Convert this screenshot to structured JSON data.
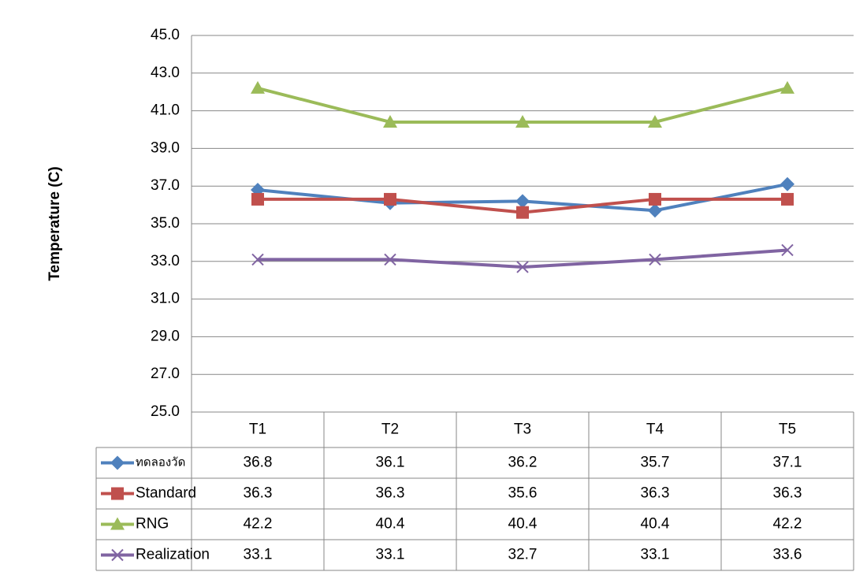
{
  "chart_data": {
    "type": "line",
    "y_label": "Temperature (C)",
    "categories": [
      "T1",
      "T2",
      "T3",
      "T4",
      "T5"
    ],
    "ylim": [
      25,
      45
    ],
    "yticks": [
      {
        "value": 25,
        "label": "25.0"
      },
      {
        "value": 27,
        "label": "27.0"
      },
      {
        "value": 29,
        "label": "29.0"
      },
      {
        "value": 31,
        "label": "31.0"
      },
      {
        "value": 33,
        "label": "33.0"
      },
      {
        "value": 35,
        "label": "35.0"
      },
      {
        "value": 37,
        "label": "37.0"
      },
      {
        "value": 39,
        "label": "39.0"
      },
      {
        "value": 41,
        "label": "41.0"
      },
      {
        "value": 43,
        "label": "43.0"
      },
      {
        "value": 45,
        "label": "45.0"
      }
    ],
    "grid": true,
    "series": [
      {
        "name": "ทดลองวัด",
        "color": "#4f81bd",
        "marker": "diamond",
        "values": [
          36.8,
          36.1,
          36.2,
          35.7,
          37.1
        ]
      },
      {
        "name": "Standard",
        "color": "#c0504d",
        "marker": "square",
        "values": [
          36.3,
          36.3,
          35.6,
          36.3,
          36.3
        ]
      },
      {
        "name": "RNG",
        "color": "#9bbb59",
        "marker": "triangle",
        "values": [
          42.2,
          40.4,
          40.4,
          40.4,
          42.2
        ]
      },
      {
        "name": "Realization",
        "color": "#8064a2",
        "marker": "x",
        "values": [
          33.1,
          33.1,
          32.7,
          33.1,
          33.6
        ]
      }
    ]
  }
}
